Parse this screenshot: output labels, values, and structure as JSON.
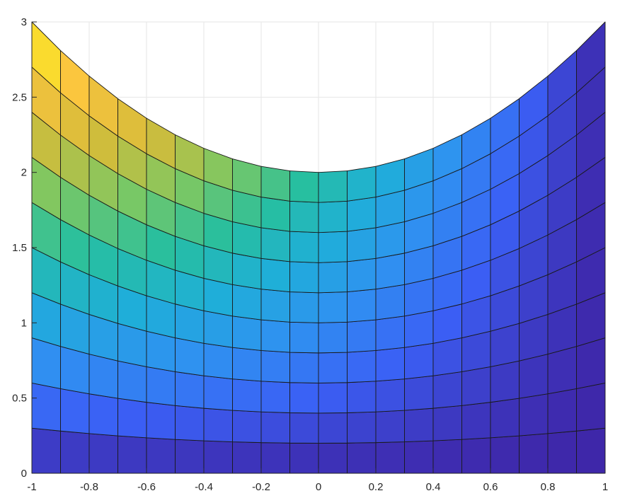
{
  "chart_data": {
    "type": "heatmap",
    "title": "",
    "xlabel": "",
    "ylabel": "",
    "xlim": [
      -1,
      1
    ],
    "ylim": [
      0,
      3
    ],
    "grid": true,
    "surface": {
      "x": [
        -1,
        -0.9,
        -0.8,
        -0.7,
        -0.6,
        -0.5,
        -0.4,
        -0.3,
        -0.2,
        -0.1,
        0,
        0.1,
        0.2,
        0.3,
        0.4,
        0.5,
        0.6,
        0.7,
        0.8,
        0.9,
        1
      ],
      "t": [
        0,
        0.1,
        0.2,
        0.3,
        0.4,
        0.5,
        0.6,
        0.7,
        0.8,
        0.9,
        1
      ],
      "y_formula": "y = t * (2 + x^2)",
      "color_formula": "c = t * (1 - x)"
    },
    "xticks": [
      "-1",
      "-0.8",
      "-0.6",
      "-0.4",
      "-0.2",
      "0",
      "0.2",
      "0.4",
      "0.6",
      "0.8",
      "1"
    ],
    "yticks": [
      "0",
      "0.5",
      "1",
      "1.5",
      "2",
      "2.5",
      "3"
    ],
    "xtick_values": [
      -1,
      -0.8,
      -0.6,
      -0.4,
      -0.2,
      0,
      0.2,
      0.4,
      0.6,
      0.8,
      1
    ],
    "ytick_values": [
      0,
      0.5,
      1,
      1.5,
      2,
      2.5,
      3
    ],
    "colormap": [
      "#3e26a8",
      "#3b5ff5",
      "#2f91f1",
      "#1fafd8",
      "#27bf9f",
      "#7cc863",
      "#d3bc3a",
      "#fbc43f",
      "#f9fb15"
    ],
    "edge_color": "#1a1a1a",
    "grid_color": "#e6e6e6",
    "axis_color": "#262626"
  }
}
